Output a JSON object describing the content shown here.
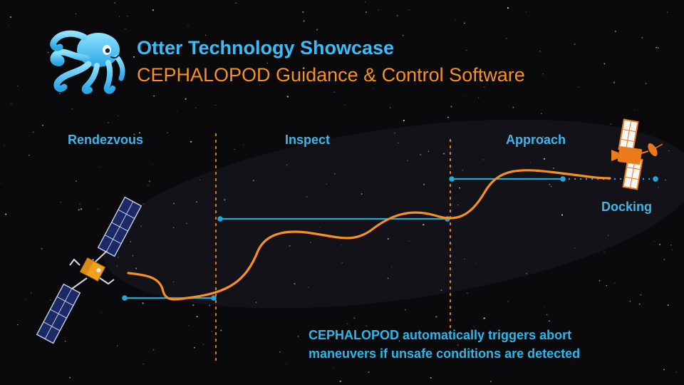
{
  "header": {
    "title": "Otter Technology Showcase",
    "subtitle": "CEPHALOPOD Guidance & Control Software",
    "logo_icon": "octopus-icon"
  },
  "phases": {
    "rendezvous": "Rendezvous",
    "inspect": "Inspect",
    "approach": "Approach",
    "docking": "Docking"
  },
  "note": {
    "line1": "CEPHALOPOD automatically triggers abort",
    "line2": "maneuvers if unsafe conditions are detected"
  },
  "icons": {
    "chaser": "servicer-satellite-icon",
    "target": "target-satellite-icon"
  },
  "colors": {
    "accent_blue": "#38bdf8",
    "accent_orange": "#f7901e",
    "guide_blue": "#1fa8d8",
    "trajectory_orange": "#f7901e",
    "background": "#0a0a0c"
  }
}
